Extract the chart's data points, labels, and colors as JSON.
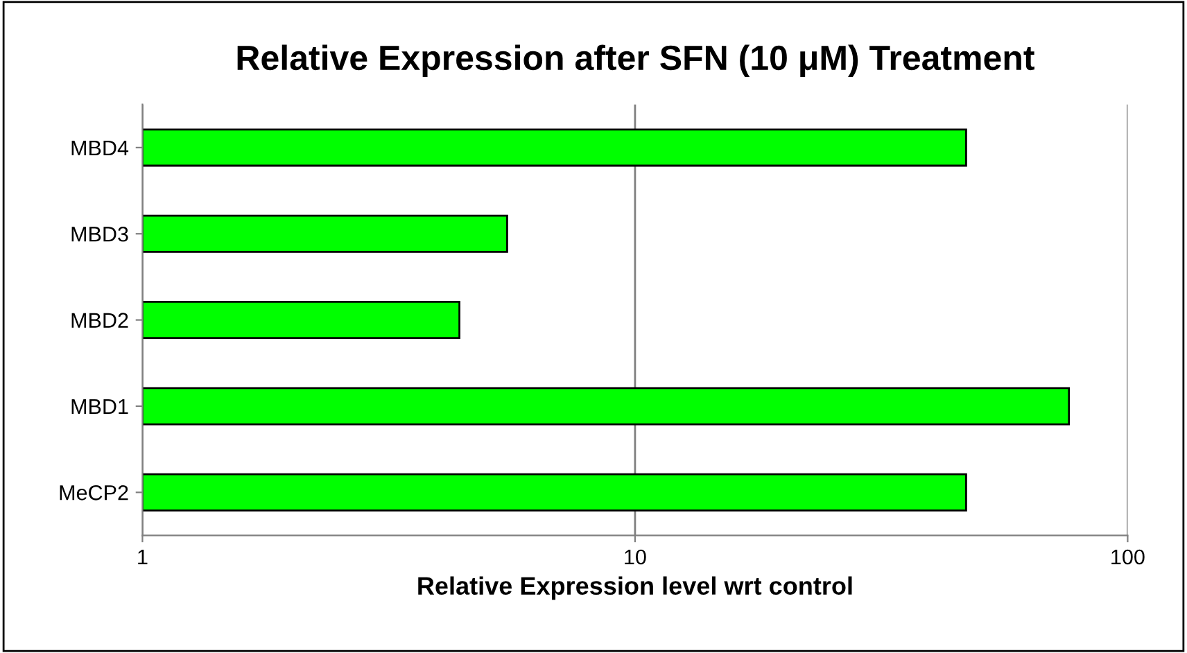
{
  "chart_data": {
    "type": "bar",
    "orientation": "horizontal",
    "title": "Relative Expression after SFN (10 μM) Treatment",
    "xlabel": "Relative Expression level wrt control",
    "categories": [
      "MBD4",
      "MBD3",
      "MBD2",
      "MBD1",
      "MeCP2"
    ],
    "values": [
      47,
      5.5,
      4.4,
      76,
      47
    ],
    "color": "#00ff00",
    "log": "x",
    "xlim": [
      1,
      100
    ],
    "xticks": [
      1,
      10,
      100
    ],
    "grid": "x"
  }
}
